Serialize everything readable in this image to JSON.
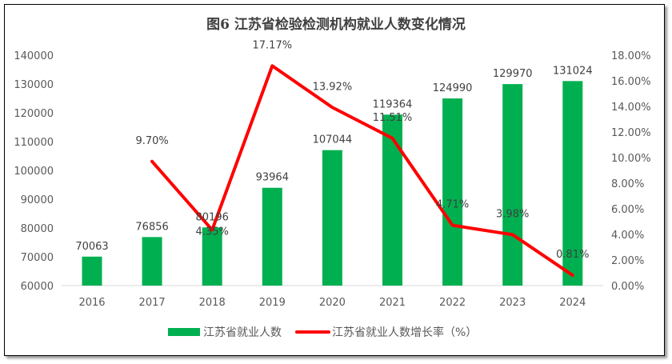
{
  "chart_data": {
    "type": "bar+line",
    "title": "图6  江苏省检验检测机构就业人数变化情况",
    "categories": [
      "2016",
      "2017",
      "2018",
      "2019",
      "2020",
      "2021",
      "2022",
      "2023",
      "2024"
    ],
    "series": [
      {
        "name": "江苏省就业人数",
        "type": "bar",
        "axis": "left",
        "color": "#00B050",
        "values": [
          70063,
          76856,
          80196,
          93964,
          107044,
          119364,
          124990,
          129970,
          131024
        ],
        "labels": [
          "70063",
          "76856",
          "80196",
          "93964",
          "107044",
          "119364",
          "124990",
          "129970",
          "131024"
        ]
      },
      {
        "name": "江苏省就业人数增长率（%）",
        "type": "line",
        "axis": "right",
        "color": "#FF0000",
        "values": [
          null,
          9.7,
          4.35,
          17.17,
          13.92,
          11.51,
          4.71,
          3.98,
          0.81
        ],
        "labels": [
          "",
          "9.70%",
          "4.35%",
          "17.17%",
          "13.92%",
          "11.51%",
          "4.71%",
          "3.98%",
          "0.81%"
        ]
      }
    ],
    "y_left": {
      "range": [
        60000,
        140000
      ],
      "ticks": [
        "60000",
        "70000",
        "80000",
        "90000",
        "100000",
        "110000",
        "120000",
        "130000",
        "140000"
      ]
    },
    "y_right": {
      "range": [
        0,
        18
      ],
      "ticks": [
        "0.00%",
        "2.00%",
        "4.00%",
        "6.00%",
        "8.00%",
        "10.00%",
        "12.00%",
        "14.00%",
        "16.00%",
        "18.00%"
      ]
    },
    "grid": false,
    "legend": "bottom"
  }
}
